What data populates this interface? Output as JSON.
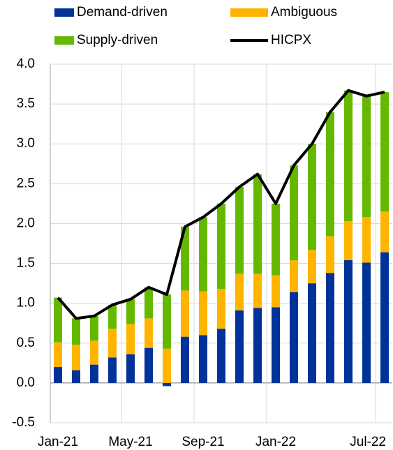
{
  "chart_data": {
    "type": "bar",
    "stacked": true,
    "categories": [
      "Jan-21",
      null,
      null,
      null,
      "May-21",
      null,
      null,
      null,
      "Sep-21",
      null,
      null,
      null,
      "Jan-22",
      null,
      null,
      null,
      null,
      null,
      "Jul-22"
    ],
    "series": [
      {
        "name": "Demand-driven",
        "color": "#003299",
        "values": [
          0.2,
          0.16,
          0.23,
          0.32,
          0.36,
          0.44,
          -0.04,
          0.58,
          0.6,
          0.68,
          0.91,
          0.94,
          0.95,
          1.14,
          1.25,
          1.38,
          1.54,
          1.51,
          1.64
        ]
      },
      {
        "name": "Ambiguous",
        "color": "#ffb400",
        "values": [
          0.31,
          0.32,
          0.3,
          0.36,
          0.38,
          0.37,
          0.43,
          0.58,
          0.55,
          0.5,
          0.46,
          0.43,
          0.4,
          0.4,
          0.42,
          0.46,
          0.49,
          0.57,
          0.51
        ]
      },
      {
        "name": "Supply-driven",
        "color": "#65b800",
        "values": [
          0.56,
          0.33,
          0.31,
          0.3,
          0.31,
          0.39,
          0.68,
          0.8,
          0.93,
          1.07,
          1.09,
          1.25,
          0.9,
          1.19,
          1.33,
          1.56,
          1.64,
          1.52,
          1.5
        ]
      },
      {
        "name": "HICPX",
        "type": "line",
        "color": "#000000",
        "values": [
          1.07,
          0.81,
          0.84,
          0.98,
          1.05,
          1.2,
          1.11,
          1.96,
          2.08,
          2.25,
          2.46,
          2.62,
          2.25,
          2.73,
          3.0,
          3.4,
          3.67,
          3.6,
          3.65
        ]
      }
    ],
    "ylim": [
      -0.5,
      4.0
    ],
    "yticks": [
      {
        "value": -0.5,
        "label": "-0.5"
      },
      {
        "value": 0,
        "label": "0.0"
      },
      0.5,
      {
        "value": 1,
        "label": "1.0"
      },
      1.5,
      {
        "value": 2,
        "label": "2.0"
      },
      2.5,
      {
        "value": 3,
        "label": "3.0"
      },
      3.5,
      {
        "value": 4,
        "label": "4.0"
      }
    ],
    "grid": true
  }
}
